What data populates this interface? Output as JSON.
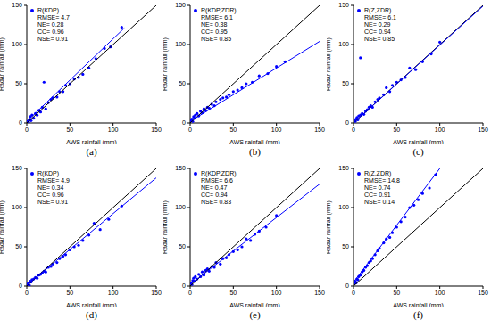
{
  "chart_data": [
    {
      "type": "scatter",
      "title": "(a)",
      "x_label": "AWS rainfall (mm)",
      "y_label": "Radar rainfall (mm)",
      "xlim": [
        0,
        150
      ],
      "ylim": [
        0,
        150
      ],
      "xticks": [
        0,
        50,
        100,
        150
      ],
      "yticks": [
        0,
        50,
        100,
        150
      ],
      "legend": "top-left",
      "annotations": [
        "RMSE= 4.7",
        "NE= 0.28",
        "CC= 0.96",
        "NSE= 0.91"
      ],
      "series": [
        {
          "name": "R(KDP)",
          "type": "scatter",
          "marker": "circle",
          "color": "#0000ff",
          "x": [
            1,
            2,
            3,
            4,
            5,
            6,
            8,
            10,
            12,
            14,
            16,
            18,
            20,
            22,
            25,
            28,
            30,
            35,
            38,
            42,
            45,
            50,
            55,
            60,
            65,
            72,
            80,
            90,
            97,
            110
          ],
          "values": [
            2,
            1,
            4,
            8,
            3,
            10,
            6,
            12,
            10,
            16,
            14,
            20,
            52,
            18,
            26,
            30,
            32,
            33,
            40,
            40,
            48,
            50,
            56,
            58,
            62,
            70,
            82,
            95,
            97,
            122
          ]
        },
        {
          "type": "line",
          "line_style": "solid",
          "color": "#000000",
          "x": [
            0,
            150
          ],
          "values": [
            0,
            150
          ]
        },
        {
          "type": "line",
          "line_style": "solid",
          "color": "#0000ff",
          "x": [
            0,
            113
          ],
          "values": [
            2,
            121
          ]
        }
      ]
    },
    {
      "type": "scatter",
      "title": "(b)",
      "x_label": "AWS rainfall (mm)",
      "y_label": "Radar rainfall (mm)",
      "xlim": [
        0,
        150
      ],
      "ylim": [
        0,
        150
      ],
      "xticks": [
        0,
        50,
        100,
        150
      ],
      "yticks": [
        0,
        50,
        100,
        150
      ],
      "legend": "top-left",
      "annotations": [
        "RMSE= 6.1",
        "NE= 0.38",
        "CC= 0.95",
        "NSE= 0.85"
      ],
      "series": [
        {
          "name": "R(KDP,ZDR)",
          "type": "scatter",
          "marker": "circle",
          "color": "#0000ff",
          "x": [
            1,
            2,
            3,
            4,
            5,
            6,
            8,
            10,
            12,
            14,
            16,
            18,
            20,
            22,
            25,
            28,
            30,
            35,
            38,
            42,
            45,
            50,
            55,
            60,
            65,
            72,
            80,
            90,
            100,
            110
          ],
          "values": [
            3,
            5,
            2,
            8,
            6,
            10,
            12,
            9,
            15,
            13,
            18,
            16,
            20,
            19,
            24,
            22,
            27,
            30,
            32,
            33,
            36,
            40,
            42,
            45,
            50,
            52,
            60,
            63,
            72,
            78
          ]
        },
        {
          "type": "line",
          "line_style": "solid",
          "color": "#000000",
          "x": [
            0,
            150
          ],
          "values": [
            0,
            150
          ]
        },
        {
          "type": "line",
          "line_style": "solid",
          "color": "#0000ff",
          "x": [
            0,
            150
          ],
          "values": [
            2,
            104
          ]
        }
      ]
    },
    {
      "type": "scatter",
      "title": "(c)",
      "x_label": "AWS rainfall (mm)",
      "y_label": "Radar rainfall (mm)",
      "xlim": [
        0,
        150
      ],
      "ylim": [
        0,
        150
      ],
      "xticks": [
        0,
        50,
        100,
        150
      ],
      "yticks": [
        0,
        50,
        100,
        150
      ],
      "legend": "top-left",
      "annotations": [
        "RMSE= 6.1",
        "NE= 0.29",
        "CC= 0.94",
        "NSE= 0.85"
      ],
      "series": [
        {
          "name": "R(Z,ZDR)",
          "type": "scatter",
          "marker": "circle",
          "color": "#0000ff",
          "x": [
            1,
            2,
            3,
            4,
            5,
            6,
            8,
            8,
            10,
            12,
            14,
            16,
            18,
            20,
            22,
            25,
            28,
            30,
            35,
            38,
            42,
            45,
            50,
            55,
            60,
            65,
            72,
            80,
            90,
            100
          ],
          "values": [
            3,
            2,
            5,
            7,
            4,
            9,
            10,
            83,
            12,
            11,
            15,
            17,
            20,
            22,
            20,
            27,
            30,
            32,
            36,
            45,
            40,
            48,
            52,
            55,
            58,
            70,
            68,
            78,
            88,
            103
          ]
        },
        {
          "type": "line",
          "line_style": "solid",
          "color": "#000000",
          "x": [
            0,
            150
          ],
          "values": [
            0,
            150
          ]
        },
        {
          "type": "line",
          "line_style": "solid",
          "color": "#0000ff",
          "x": [
            0,
            150
          ],
          "values": [
            0,
            149
          ]
        }
      ]
    },
    {
      "type": "scatter",
      "title": "(d)",
      "x_label": "AWS rainfall (mm)",
      "y_label": "Radar rainfall (mm)",
      "xlim": [
        0,
        150
      ],
      "ylim": [
        0,
        150
      ],
      "xticks": [
        0,
        50,
        100,
        150
      ],
      "yticks": [
        0,
        50,
        100,
        150
      ],
      "legend": "top-left",
      "annotations": [
        "RMSE= 4.9",
        "NE= 0.34",
        "CC= 0.96",
        "NSE= 0.91"
      ],
      "series": [
        {
          "name": "R(KDP)",
          "type": "scatter",
          "marker": "circle",
          "color": "#0000ff",
          "x": [
            1,
            2,
            3,
            4,
            5,
            6,
            8,
            10,
            12,
            14,
            16,
            18,
            20,
            22,
            25,
            28,
            30,
            35,
            38,
            42,
            45,
            50,
            55,
            60,
            65,
            72,
            78,
            85,
            95,
            110
          ],
          "values": [
            2,
            4,
            1,
            6,
            5,
            8,
            9,
            11,
            10,
            14,
            15,
            17,
            19,
            18,
            24,
            25,
            28,
            30,
            35,
            38,
            40,
            46,
            50,
            52,
            58,
            65,
            80,
            72,
            85,
            102
          ]
        },
        {
          "type": "line",
          "line_style": "solid",
          "color": "#000000",
          "x": [
            0,
            150
          ],
          "values": [
            0,
            150
          ]
        },
        {
          "type": "line",
          "line_style": "solid",
          "color": "#0000ff",
          "x": [
            0,
            150
          ],
          "values": [
            1,
            138
          ]
        }
      ]
    },
    {
      "type": "scatter",
      "title": "(e)",
      "x_label": "AWS rainfall (mm)",
      "y_label": "Radar rainfall (mm)",
      "xlim": [
        0,
        150
      ],
      "ylim": [
        0,
        150
      ],
      "xticks": [
        0,
        50,
        100,
        150
      ],
      "yticks": [
        0,
        50,
        100,
        150
      ],
      "legend": "top-left",
      "annotations": [
        "RMSE= 6.6",
        "NE= 0.47",
        "CC= 0.94",
        "NSE= 0.83"
      ],
      "series": [
        {
          "name": "R(KDP,ZDR)",
          "type": "scatter",
          "marker": "circle",
          "color": "#0000ff",
          "x": [
            1,
            2,
            3,
            4,
            5,
            6,
            8,
            10,
            12,
            14,
            16,
            18,
            20,
            22,
            25,
            28,
            30,
            35,
            38,
            42,
            45,
            50,
            55,
            60,
            65,
            70,
            75,
            80,
            88,
            100
          ],
          "values": [
            4,
            2,
            7,
            10,
            6,
            12,
            9,
            15,
            12,
            18,
            14,
            20,
            22,
            19,
            25,
            24,
            30,
            28,
            35,
            36,
            40,
            44,
            46,
            50,
            60,
            58,
            66,
            70,
            75,
            90
          ]
        },
        {
          "type": "line",
          "line_style": "solid",
          "color": "#000000",
          "x": [
            0,
            150
          ],
          "values": [
            0,
            150
          ]
        },
        {
          "type": "line",
          "line_style": "solid",
          "color": "#0000ff",
          "x": [
            0,
            150
          ],
          "values": [
            2,
            130
          ]
        }
      ]
    },
    {
      "type": "scatter",
      "title": "(f)",
      "x_label": "AWS rainfall (mm)",
      "y_label": "Radar rainfall (mm)",
      "xlim": [
        0,
        150
      ],
      "ylim": [
        0,
        150
      ],
      "xticks": [
        0,
        50,
        100,
        150
      ],
      "yticks": [
        0,
        50,
        100,
        150
      ],
      "legend": "top-left",
      "annotations": [
        "RMSE= 14.8",
        "NE= 0.74",
        "CC= 0.91",
        "NSE= 0.14"
      ],
      "series": [
        {
          "name": "R(Z,ZDR)",
          "type": "scatter",
          "marker": "circle",
          "color": "#0000ff",
          "x": [
            1,
            2,
            3,
            4,
            5,
            6,
            8,
            10,
            12,
            14,
            16,
            18,
            20,
            22,
            25,
            28,
            30,
            35,
            38,
            42,
            45,
            50,
            55,
            60,
            65,
            70,
            75,
            80,
            88,
            95
          ],
          "values": [
            3,
            6,
            4,
            9,
            8,
            12,
            14,
            18,
            20,
            24,
            26,
            30,
            32,
            35,
            40,
            45,
            48,
            55,
            60,
            62,
            68,
            75,
            82,
            88,
            100,
            103,
            110,
            118,
            125,
            142
          ]
        },
        {
          "type": "line",
          "line_style": "solid",
          "color": "#000000",
          "x": [
            0,
            150
          ],
          "values": [
            0,
            150
          ]
        },
        {
          "type": "line",
          "line_style": "solid",
          "color": "#0000ff",
          "x": [
            0,
            100
          ],
          "values": [
            5,
            150
          ]
        }
      ]
    }
  ]
}
